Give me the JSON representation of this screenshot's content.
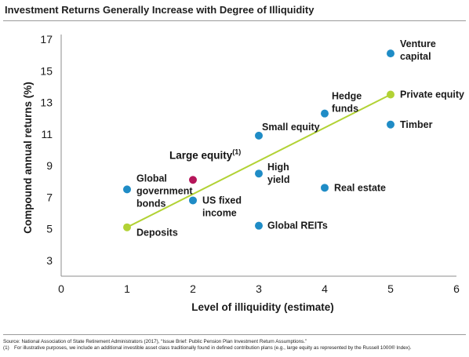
{
  "page": {
    "title": "Investment Returns Generally Increase with Degree of Illiquidity",
    "source": "Source: National Association of State Retirement Administrators (2017), “Issue Brief: Public Pension Plan Investment Return Assumptions.”",
    "footnote_number": "(1)",
    "footnote_text": "For illustrative purposes, we include an additional investible asset class traditionally found in defined contribution plans (e.g., large equity as represented by the Russell 1000® Index)."
  },
  "colors": {
    "point": "#1f8cc6",
    "highlight": "#b5165a",
    "trend": "#b2d235",
    "axis": "#8c8c8c"
  },
  "chart_data": {
    "type": "scatter",
    "xlabel": "Level of illiquidity (estimate)",
    "ylabel": "Compound annual returns (%)",
    "xlim": [
      0,
      6
    ],
    "ylim": [
      3,
      17
    ],
    "xticks": [
      0,
      1,
      2,
      3,
      4,
      5,
      6
    ],
    "yticks": [
      3,
      5,
      7,
      9,
      11,
      13,
      15,
      17
    ],
    "grid": false,
    "points": [
      {
        "label": [
          "Venture",
          "capital"
        ],
        "x": 5,
        "y": 16.1,
        "color": "#1f8cc6"
      },
      {
        "label": [
          "Private equity"
        ],
        "x": 5,
        "y": 13.5,
        "color": "#b2d235"
      },
      {
        "label": [
          "Timber"
        ],
        "x": 5,
        "y": 11.6,
        "color": "#1f8cc6"
      },
      {
        "label": [
          "Hedge",
          "funds"
        ],
        "x": 4,
        "y": 12.3,
        "color": "#1f8cc6"
      },
      {
        "label": [
          "Real estate"
        ],
        "x": 4,
        "y": 7.6,
        "color": "#1f8cc6"
      },
      {
        "label": [
          "Small equity"
        ],
        "x": 3,
        "y": 10.9,
        "color": "#1f8cc6"
      },
      {
        "label": [
          "High",
          "yield"
        ],
        "x": 3,
        "y": 8.5,
        "color": "#1f8cc6"
      },
      {
        "label": [
          "Global REITs"
        ],
        "x": 3,
        "y": 5.2,
        "color": "#1f8cc6"
      },
      {
        "label": [
          "Large equity"
        ],
        "sup": "(1)",
        "x": 2,
        "y": 8.1,
        "color": "#b5165a"
      },
      {
        "label": [
          "US fixed",
          "income"
        ],
        "x": 2,
        "y": 6.8,
        "color": "#1f8cc6"
      },
      {
        "label": [
          "Global",
          "government",
          "bonds"
        ],
        "x": 1,
        "y": 7.5,
        "color": "#1f8cc6"
      },
      {
        "label": [
          "Deposits"
        ],
        "x": 1,
        "y": 5.1,
        "color": "#b2d235"
      }
    ],
    "trendline": {
      "x": [
        1,
        5
      ],
      "y": [
        5.1,
        13.5
      ],
      "color": "#b2d235"
    }
  }
}
